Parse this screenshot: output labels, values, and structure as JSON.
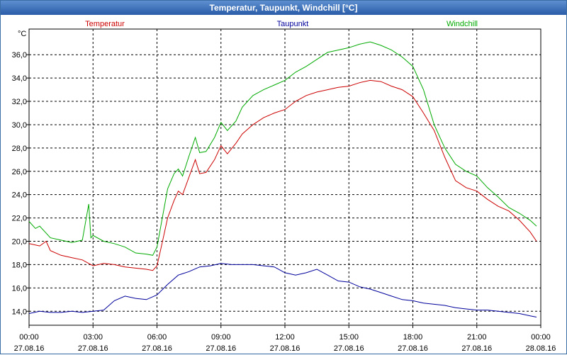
{
  "window": {
    "title": "Temperatur, Taupunkt, Windchill [°C]"
  },
  "chart_data": {
    "type": "line",
    "title": "Temperatur, Taupunkt, Windchill [°C]",
    "ylabel": "°C",
    "ylim": [
      12.8,
      38.2
    ],
    "yticks": [
      14.0,
      16.0,
      18.0,
      20.0,
      22.0,
      24.0,
      26.0,
      28.0,
      30.0,
      32.0,
      34.0,
      36.0
    ],
    "ytick_labels": [
      "14,0",
      "16,0",
      "18,0",
      "20,0",
      "22,0",
      "24,0",
      "26,0",
      "28,0",
      "30,0",
      "32,0",
      "34,0",
      "36,0"
    ],
    "xlim": [
      0,
      24
    ],
    "xticks": [
      0,
      3,
      6,
      9,
      12,
      15,
      18,
      21,
      24
    ],
    "xtick_time_labels": [
      "00:00",
      "03:00",
      "06:00",
      "09:00",
      "12:00",
      "15:00",
      "18:00",
      "21:00",
      "00:00"
    ],
    "xtick_date_labels": [
      "27.08.16",
      "27.08.16",
      "27.08.16",
      "27.08.16",
      "27.08.16",
      "27.08.16",
      "27.08.16",
      "27.08.16",
      "28.08.16"
    ],
    "grid": true,
    "legend": "top",
    "series": [
      {
        "name": "Temperatur",
        "color": "#cc0000",
        "x": [
          0,
          0.5,
          0.8,
          1.0,
          1.5,
          2.0,
          2.5,
          3.0,
          3.5,
          4.0,
          4.5,
          5.0,
          5.5,
          5.8,
          6.0,
          6.2,
          6.5,
          6.8,
          7.0,
          7.2,
          7.5,
          7.8,
          8.0,
          8.3,
          8.7,
          9.0,
          9.3,
          9.7,
          10.0,
          10.5,
          11.0,
          11.5,
          12.0,
          12.5,
          13.0,
          13.5,
          14.0,
          14.5,
          15.0,
          15.5,
          16.0,
          16.5,
          17.0,
          17.5,
          18.0,
          18.5,
          19.0,
          19.5,
          20.0,
          20.5,
          21.0,
          21.5,
          22.0,
          22.5,
          23.0,
          23.5,
          23.8
        ],
        "values": [
          19.8,
          19.6,
          20.0,
          19.2,
          18.8,
          18.6,
          18.4,
          17.9,
          18.1,
          18.0,
          17.8,
          17.7,
          17.6,
          17.5,
          17.9,
          19.5,
          22.0,
          23.5,
          24.3,
          24.0,
          25.5,
          27.0,
          25.8,
          25.9,
          27.0,
          28.2,
          27.5,
          28.4,
          29.2,
          30.0,
          30.6,
          31.0,
          31.3,
          32.0,
          32.5,
          32.8,
          33.0,
          33.2,
          33.3,
          33.6,
          33.8,
          33.7,
          33.3,
          33.0,
          32.4,
          31.0,
          29.5,
          27.2,
          25.2,
          24.6,
          24.3,
          23.6,
          23.0,
          22.6,
          21.8,
          20.8,
          20.0
        ]
      },
      {
        "name": "Taupunkt",
        "color": "#00009c",
        "x": [
          0,
          0.5,
          1.0,
          1.5,
          2.0,
          2.5,
          3.0,
          3.5,
          4.0,
          4.5,
          5.0,
          5.5,
          6.0,
          6.5,
          7.0,
          7.5,
          8.0,
          8.5,
          9.0,
          9.5,
          10.0,
          10.5,
          11.0,
          11.5,
          12.0,
          12.5,
          13.0,
          13.5,
          14.0,
          14.5,
          15.0,
          15.5,
          16.0,
          16.5,
          17.0,
          17.5,
          18.0,
          18.5,
          19.0,
          19.5,
          20.0,
          20.5,
          21.0,
          21.5,
          22.0,
          22.5,
          23.0,
          23.5,
          23.8
        ],
        "values": [
          13.8,
          14.0,
          13.9,
          13.9,
          14.0,
          13.9,
          14.0,
          14.1,
          14.9,
          15.3,
          15.1,
          15.0,
          15.4,
          16.3,
          17.1,
          17.4,
          17.8,
          17.9,
          18.1,
          18.0,
          18.0,
          18.0,
          17.9,
          17.8,
          17.3,
          17.1,
          17.3,
          17.6,
          17.1,
          16.6,
          16.5,
          16.1,
          15.9,
          15.6,
          15.3,
          15.0,
          14.9,
          14.7,
          14.6,
          14.5,
          14.3,
          14.2,
          14.1,
          14.1,
          14.0,
          13.9,
          13.8,
          13.6,
          13.5
        ]
      },
      {
        "name": "Windchill",
        "color": "#00aa00",
        "x": [
          0,
          0.3,
          0.5,
          1.0,
          1.5,
          2.0,
          2.5,
          2.8,
          2.9,
          3.0,
          3.5,
          4.0,
          4.5,
          5.0,
          5.5,
          5.8,
          6.0,
          6.2,
          6.5,
          6.8,
          7.0,
          7.2,
          7.5,
          7.8,
          8.0,
          8.3,
          8.7,
          9.0,
          9.3,
          9.7,
          10.0,
          10.5,
          11.0,
          11.5,
          12.0,
          12.5,
          13.0,
          13.5,
          14.0,
          14.5,
          15.0,
          15.5,
          16.0,
          16.5,
          17.0,
          17.5,
          18.0,
          18.5,
          19.0,
          19.5,
          20.0,
          20.5,
          21.0,
          21.5,
          22.0,
          22.5,
          23.0,
          23.5,
          23.8
        ],
        "values": [
          21.7,
          21.1,
          21.3,
          20.3,
          20.1,
          19.9,
          20.1,
          23.2,
          20.3,
          20.5,
          20.0,
          19.8,
          19.5,
          19.0,
          18.9,
          18.8,
          19.5,
          21.5,
          24.5,
          25.8,
          26.2,
          25.6,
          27.3,
          28.9,
          27.6,
          27.7,
          28.9,
          30.2,
          29.5,
          30.3,
          31.5,
          32.5,
          33.0,
          33.4,
          33.8,
          34.5,
          35.0,
          35.6,
          36.2,
          36.4,
          36.6,
          36.9,
          37.1,
          36.8,
          36.4,
          35.8,
          35.0,
          33.0,
          30.0,
          28.0,
          26.6,
          26.0,
          25.6,
          24.6,
          23.8,
          22.9,
          22.4,
          21.8,
          21.3
        ]
      }
    ]
  }
}
